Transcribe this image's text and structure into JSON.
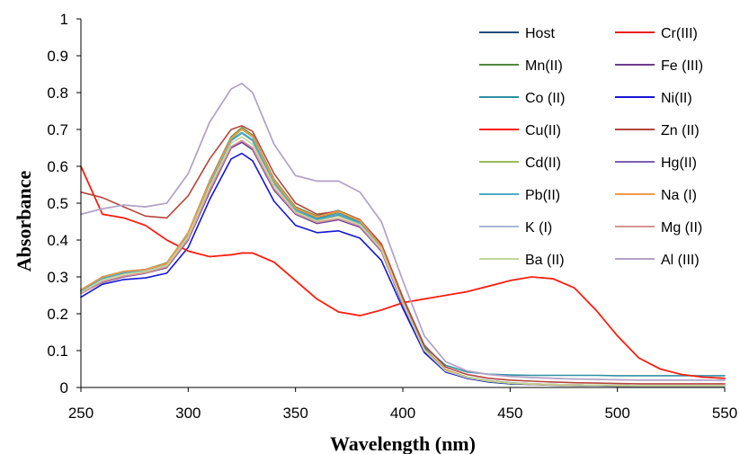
{
  "chart_data": {
    "type": "line",
    "xlabel": "Wavelength (nm)",
    "ylabel": "Absorbance",
    "xlim": [
      250,
      550
    ],
    "ylim": [
      0,
      1
    ],
    "x_ticks": [
      "250",
      "300",
      "350",
      "400",
      "450",
      "500",
      "550"
    ],
    "y_ticks": [
      "0",
      "0.1",
      "0.2",
      "0.3",
      "0.4",
      "0.5",
      "0.6",
      "0.7",
      "0.8",
      "0.9",
      "1"
    ],
    "grid": false,
    "legend_position": "top-right",
    "x": [
      250,
      260,
      270,
      280,
      290,
      300,
      310,
      320,
      325,
      330,
      340,
      350,
      360,
      370,
      380,
      390,
      400,
      410,
      420,
      430,
      440,
      450,
      460,
      470,
      480,
      490,
      500,
      510,
      520,
      530,
      540,
      550
    ],
    "series": [
      {
        "name": "Host",
        "color": "#1f4e79",
        "values": [
          0.265,
          0.3,
          0.315,
          0.32,
          0.335,
          0.42,
          0.56,
          0.68,
          0.7,
          0.68,
          0.56,
          0.485,
          0.46,
          0.475,
          0.45,
          0.38,
          0.23,
          0.1,
          0.045,
          0.025,
          0.015,
          0.01,
          0.008,
          0.006,
          0.005,
          0.005,
          0.004,
          0.004,
          0.004,
          0.004,
          0.004,
          0.004
        ]
      },
      {
        "name": "Cr(III)",
        "color": "#e8201c",
        "values": [
          0.6,
          0.47,
          0.46,
          0.44,
          0.4,
          0.37,
          0.355,
          0.36,
          0.365,
          0.365,
          0.34,
          0.29,
          0.24,
          0.205,
          0.195,
          0.21,
          0.23,
          0.24,
          0.25,
          0.26,
          0.275,
          0.29,
          0.3,
          0.295,
          0.27,
          0.21,
          0.14,
          0.08,
          0.05,
          0.035,
          0.028,
          0.025
        ]
      },
      {
        "name": "Mn(II)",
        "color": "#4f8a3e",
        "values": [
          0.265,
          0.3,
          0.315,
          0.32,
          0.338,
          0.42,
          0.56,
          0.68,
          0.705,
          0.685,
          0.565,
          0.49,
          0.465,
          0.48,
          0.455,
          0.385,
          0.235,
          0.105,
          0.048,
          0.028,
          0.018,
          0.013,
          0.01,
          0.008,
          0.007,
          0.006,
          0.006,
          0.005,
          0.005,
          0.005,
          0.005,
          0.005
        ]
      },
      {
        "name": "Fe (III)",
        "color": "#6f3a8f",
        "values": [
          0.255,
          0.285,
          0.3,
          0.31,
          0.325,
          0.4,
          0.53,
          0.65,
          0.665,
          0.645,
          0.535,
          0.47,
          0.445,
          0.455,
          0.435,
          0.37,
          0.225,
          0.1,
          0.045,
          0.027,
          0.017,
          0.012,
          0.01,
          0.008,
          0.007,
          0.006,
          0.006,
          0.005,
          0.005,
          0.005,
          0.005,
          0.005
        ]
      },
      {
        "name": "Co (II)",
        "color": "#2e8fa3",
        "values": [
          0.26,
          0.295,
          0.31,
          0.318,
          0.333,
          0.415,
          0.55,
          0.67,
          0.69,
          0.67,
          0.55,
          0.478,
          0.455,
          0.468,
          0.445,
          0.378,
          0.235,
          0.11,
          0.06,
          0.042,
          0.036,
          0.034,
          0.033,
          0.033,
          0.033,
          0.033,
          0.032,
          0.032,
          0.032,
          0.032,
          0.032,
          0.032
        ]
      },
      {
        "name": "Ni(II)",
        "color": "#1515d6",
        "values": [
          0.245,
          0.28,
          0.293,
          0.297,
          0.31,
          0.38,
          0.51,
          0.62,
          0.635,
          0.615,
          0.505,
          0.44,
          0.42,
          0.425,
          0.405,
          0.345,
          0.215,
          0.095,
          0.042,
          0.025,
          0.016,
          0.011,
          0.009,
          0.007,
          0.006,
          0.006,
          0.005,
          0.005,
          0.005,
          0.005,
          0.005,
          0.005
        ]
      },
      {
        "name": "Cu(II)",
        "color": "#ff1a0a",
        "values": [
          0.6,
          0.47,
          0.46,
          0.44,
          0.4,
          0.37,
          0.355,
          0.36,
          0.365,
          0.365,
          0.34,
          0.29,
          0.24,
          0.205,
          0.195,
          0.21,
          0.23,
          0.24,
          0.25,
          0.26,
          0.275,
          0.29,
          0.3,
          0.295,
          0.27,
          0.21,
          0.14,
          0.08,
          0.05,
          0.035,
          0.028,
          0.025
        ]
      },
      {
        "name": "Zn (II)",
        "color": "#b5453c",
        "values": [
          0.53,
          0.515,
          0.49,
          0.465,
          0.46,
          0.52,
          0.62,
          0.7,
          0.71,
          0.695,
          0.58,
          0.5,
          0.47,
          0.478,
          0.455,
          0.39,
          0.245,
          0.115,
          0.055,
          0.035,
          0.025,
          0.02,
          0.017,
          0.015,
          0.013,
          0.012,
          0.011,
          0.01,
          0.01,
          0.01,
          0.01,
          0.01
        ]
      },
      {
        "name": "Cd(II)",
        "color": "#9bbb59",
        "values": [
          0.262,
          0.297,
          0.312,
          0.318,
          0.335,
          0.418,
          0.556,
          0.675,
          0.7,
          0.68,
          0.56,
          0.486,
          0.462,
          0.476,
          0.452,
          0.382,
          0.232,
          0.102,
          0.046,
          0.027,
          0.017,
          0.012,
          0.009,
          0.007,
          0.006,
          0.006,
          0.005,
          0.005,
          0.005,
          0.005,
          0.005,
          0.005
        ]
      },
      {
        "name": "Hg(II)",
        "color": "#7d5fb0",
        "values": [
          0.255,
          0.287,
          0.302,
          0.311,
          0.327,
          0.403,
          0.535,
          0.652,
          0.668,
          0.648,
          0.538,
          0.472,
          0.447,
          0.457,
          0.437,
          0.372,
          0.227,
          0.1,
          0.045,
          0.027,
          0.017,
          0.012,
          0.01,
          0.008,
          0.007,
          0.006,
          0.006,
          0.005,
          0.005,
          0.005,
          0.005,
          0.005
        ]
      },
      {
        "name": "Pb(II)",
        "color": "#4bacc6",
        "values": [
          0.262,
          0.297,
          0.312,
          0.318,
          0.334,
          0.417,
          0.553,
          0.672,
          0.692,
          0.672,
          0.553,
          0.48,
          0.457,
          0.47,
          0.447,
          0.38,
          0.232,
          0.102,
          0.046,
          0.027,
          0.017,
          0.012,
          0.009,
          0.007,
          0.006,
          0.006,
          0.005,
          0.005,
          0.005,
          0.005,
          0.005,
          0.005
        ]
      },
      {
        "name": "Na (I)",
        "color": "#f79646",
        "values": [
          0.265,
          0.3,
          0.315,
          0.32,
          0.336,
          0.42,
          0.558,
          0.677,
          0.702,
          0.682,
          0.562,
          0.487,
          0.463,
          0.478,
          0.453,
          0.383,
          0.233,
          0.103,
          0.047,
          0.027,
          0.017,
          0.012,
          0.009,
          0.007,
          0.006,
          0.006,
          0.005,
          0.005,
          0.005,
          0.005,
          0.005,
          0.005
        ]
      },
      {
        "name": "K (I)",
        "color": "#a9b8d8",
        "values": [
          0.47,
          0.485,
          0.495,
          0.49,
          0.5,
          0.58,
          0.72,
          0.81,
          0.825,
          0.8,
          0.66,
          0.575,
          0.56,
          0.56,
          0.53,
          0.45,
          0.29,
          0.14,
          0.07,
          0.045,
          0.035,
          0.03,
          0.027,
          0.025,
          0.023,
          0.022,
          0.021,
          0.02,
          0.02,
          0.02,
          0.02,
          0.02
        ]
      },
      {
        "name": "Mg (II)",
        "color": "#d99694",
        "values": [
          0.255,
          0.287,
          0.302,
          0.311,
          0.327,
          0.403,
          0.536,
          0.654,
          0.67,
          0.65,
          0.54,
          0.473,
          0.448,
          0.458,
          0.438,
          0.373,
          0.228,
          0.101,
          0.045,
          0.027,
          0.017,
          0.012,
          0.01,
          0.008,
          0.007,
          0.006,
          0.006,
          0.005,
          0.005,
          0.005,
          0.005,
          0.005
        ]
      },
      {
        "name": "Ba (II)",
        "color": "#c3d69b",
        "values": [
          0.258,
          0.292,
          0.307,
          0.315,
          0.331,
          0.41,
          0.545,
          0.663,
          0.68,
          0.66,
          0.548,
          0.476,
          0.452,
          0.464,
          0.442,
          0.376,
          0.23,
          0.101,
          0.045,
          0.027,
          0.017,
          0.012,
          0.01,
          0.008,
          0.007,
          0.006,
          0.006,
          0.005,
          0.005,
          0.005,
          0.005,
          0.005
        ]
      },
      {
        "name": "Al (III)",
        "color": "#b3a2c7",
        "values": [
          0.47,
          0.485,
          0.495,
          0.49,
          0.5,
          0.58,
          0.72,
          0.81,
          0.825,
          0.8,
          0.66,
          0.575,
          0.56,
          0.56,
          0.53,
          0.45,
          0.29,
          0.14,
          0.07,
          0.045,
          0.035,
          0.03,
          0.027,
          0.025,
          0.023,
          0.022,
          0.021,
          0.02,
          0.02,
          0.02,
          0.02,
          0.02
        ]
      }
    ]
  }
}
